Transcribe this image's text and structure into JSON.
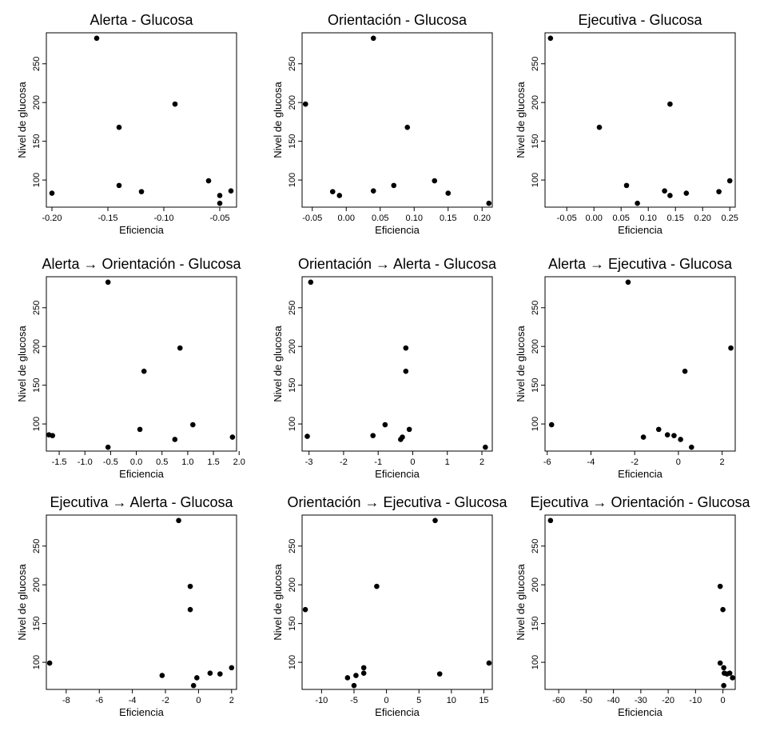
{
  "chart_data": [
    {
      "type": "scatter",
      "title": "Alerta - Glucosa",
      "xlabel": "Eficiencia",
      "ylabel": "Nivel de glucosa",
      "xlim": [
        -0.205,
        -0.035
      ],
      "ylim": [
        65,
        290
      ],
      "xticks": [
        -0.2,
        -0.15,
        -0.1,
        -0.05
      ],
      "xtick_labels": [
        "-0.20",
        "-0.15",
        "-0.10",
        "-0.05"
      ],
      "yticks": [
        100,
        150,
        200,
        250
      ],
      "ytick_labels": [
        "100",
        "150",
        "200",
        "250"
      ],
      "points": [
        {
          "x": -0.2,
          "y": 83
        },
        {
          "x": -0.16,
          "y": 283
        },
        {
          "x": -0.14,
          "y": 168
        },
        {
          "x": -0.14,
          "y": 93
        },
        {
          "x": -0.12,
          "y": 85
        },
        {
          "x": -0.09,
          "y": 198
        },
        {
          "x": -0.06,
          "y": 99
        },
        {
          "x": -0.05,
          "y": 80
        },
        {
          "x": -0.05,
          "y": 70
        },
        {
          "x": -0.04,
          "y": 86
        }
      ]
    },
    {
      "type": "scatter",
      "title": "Orientación - Glucosa",
      "xlabel": "Eficiencia",
      "ylabel": "Nivel de glucosa",
      "xlim": [
        -0.065,
        0.215
      ],
      "ylim": [
        65,
        290
      ],
      "xticks": [
        -0.05,
        0,
        0.05,
        0.1,
        0.15,
        0.2
      ],
      "xtick_labels": [
        "-0.05",
        "0.00",
        "0.05",
        "0.10",
        "0.15",
        "0.20"
      ],
      "yticks": [
        100,
        150,
        200,
        250
      ],
      "ytick_labels": [
        "100",
        "150",
        "200",
        "250"
      ],
      "points": [
        {
          "x": -0.06,
          "y": 198
        },
        {
          "x": -0.02,
          "y": 85
        },
        {
          "x": -0.01,
          "y": 80
        },
        {
          "x": 0.04,
          "y": 283
        },
        {
          "x": 0.04,
          "y": 86
        },
        {
          "x": 0.07,
          "y": 93
        },
        {
          "x": 0.09,
          "y": 168
        },
        {
          "x": 0.13,
          "y": 99
        },
        {
          "x": 0.15,
          "y": 83
        },
        {
          "x": 0.21,
          "y": 70
        }
      ]
    },
    {
      "type": "scatter",
      "title": "Ejecutiva - Glucosa",
      "xlabel": "Eficiencia",
      "ylabel": "Nivel de glucosa",
      "xlim": [
        -0.09,
        0.26
      ],
      "ylim": [
        65,
        290
      ],
      "xticks": [
        -0.05,
        0,
        0.05,
        0.1,
        0.15,
        0.2,
        0.25
      ],
      "xtick_labels": [
        "-0.05",
        "0.00",
        "0.05",
        "0.10",
        "0.15",
        "0.20",
        "0.25"
      ],
      "yticks": [
        100,
        150,
        200,
        250
      ],
      "ytick_labels": [
        "100",
        "150",
        "200",
        "250"
      ],
      "points": [
        {
          "x": -0.08,
          "y": 283
        },
        {
          "x": 0.01,
          "y": 168
        },
        {
          "x": 0.06,
          "y": 93
        },
        {
          "x": 0.08,
          "y": 70
        },
        {
          "x": 0.13,
          "y": 86
        },
        {
          "x": 0.14,
          "y": 198
        },
        {
          "x": 0.14,
          "y": 80
        },
        {
          "x": 0.17,
          "y": 83
        },
        {
          "x": 0.23,
          "y": 85
        },
        {
          "x": 0.25,
          "y": 99
        }
      ]
    },
    {
      "type": "scatter",
      "title": "Alerta → Orientación - Glucosa",
      "xlabel": "Eficiencia",
      "ylabel": "Nivel de glucosa",
      "xlim": [
        -1.75,
        1.95
      ],
      "ylim": [
        65,
        290
      ],
      "xticks": [
        -1.5,
        -1.0,
        -0.5,
        0,
        0.5,
        1.0,
        1.5,
        2.0
      ],
      "xtick_labels": [
        "-1.5",
        "-1.0",
        "-0.5",
        "0.0",
        "0.5",
        "1.0",
        "1.5",
        "2.0"
      ],
      "yticks": [
        100,
        150,
        200,
        250
      ],
      "ytick_labels": [
        "100",
        "150",
        "200",
        "250"
      ],
      "points": [
        {
          "x": -1.7,
          "y": 86
        },
        {
          "x": -1.63,
          "y": 85
        },
        {
          "x": -0.55,
          "y": 283
        },
        {
          "x": -0.55,
          "y": 70
        },
        {
          "x": 0.07,
          "y": 93
        },
        {
          "x": 0.15,
          "y": 168
        },
        {
          "x": 0.75,
          "y": 80
        },
        {
          "x": 0.85,
          "y": 198
        },
        {
          "x": 1.1,
          "y": 99
        },
        {
          "x": 1.87,
          "y": 83
        }
      ]
    },
    {
      "type": "scatter",
      "title": "Orientación → Alerta - Glucosa",
      "xlabel": "Eficiencia",
      "ylabel": "Nivel de glucosa",
      "xlim": [
        -3.2,
        2.3
      ],
      "ylim": [
        65,
        290
      ],
      "xticks": [
        -3,
        -2,
        -1,
        0,
        1,
        2
      ],
      "xtick_labels": [
        "-3",
        "-2",
        "-1",
        "0",
        "1",
        "2"
      ],
      "yticks": [
        100,
        150,
        200,
        250
      ],
      "ytick_labels": [
        "100",
        "150",
        "200",
        "250"
      ],
      "points": [
        {
          "x": -3.05,
          "y": 84
        },
        {
          "x": -2.95,
          "y": 283
        },
        {
          "x": -1.15,
          "y": 85
        },
        {
          "x": -0.8,
          "y": 99
        },
        {
          "x": -0.35,
          "y": 80
        },
        {
          "x": -0.3,
          "y": 83
        },
        {
          "x": -0.2,
          "y": 198
        },
        {
          "x": -0.2,
          "y": 168
        },
        {
          "x": -0.1,
          "y": 93
        },
        {
          "x": 2.1,
          "y": 70
        }
      ]
    },
    {
      "type": "scatter",
      "title": "Alerta → Ejecutiva - Glucosa",
      "xlabel": "Eficiencia",
      "ylabel": "Nivel de glucosa",
      "xlim": [
        -6.1,
        2.6
      ],
      "ylim": [
        65,
        290
      ],
      "xticks": [
        -6,
        -4,
        -2,
        0,
        2
      ],
      "xtick_labels": [
        "-6",
        "-4",
        "-2",
        "0",
        "2"
      ],
      "yticks": [
        100,
        150,
        200,
        250
      ],
      "ytick_labels": [
        "100",
        "150",
        "200",
        "250"
      ],
      "points": [
        {
          "x": -5.8,
          "y": 99
        },
        {
          "x": -2.3,
          "y": 283
        },
        {
          "x": -1.6,
          "y": 83
        },
        {
          "x": -0.9,
          "y": 93
        },
        {
          "x": -0.5,
          "y": 86
        },
        {
          "x": -0.2,
          "y": 85
        },
        {
          "x": 0.1,
          "y": 80
        },
        {
          "x": 0.3,
          "y": 168
        },
        {
          "x": 0.6,
          "y": 70
        },
        {
          "x": 2.4,
          "y": 198
        }
      ]
    },
    {
      "type": "scatter",
      "title": "Ejecutiva → Alerta - Glucosa",
      "xlabel": "Eficiencia",
      "ylabel": "Nivel de glucosa",
      "xlim": [
        -9.2,
        2.3
      ],
      "ylim": [
        65,
        290
      ],
      "xticks": [
        -8,
        -6,
        -4,
        -2,
        0,
        2
      ],
      "xtick_labels": [
        "-8",
        "-6",
        "-4",
        "-2",
        "0",
        "2"
      ],
      "yticks": [
        100,
        150,
        200,
        250
      ],
      "ytick_labels": [
        "100",
        "150",
        "200",
        "250"
      ],
      "points": [
        {
          "x": -9.0,
          "y": 99
        },
        {
          "x": -2.2,
          "y": 83
        },
        {
          "x": -1.2,
          "y": 283
        },
        {
          "x": -0.5,
          "y": 198
        },
        {
          "x": -0.5,
          "y": 168
        },
        {
          "x": -0.3,
          "y": 70
        },
        {
          "x": -0.1,
          "y": 80
        },
        {
          "x": 0.7,
          "y": 86
        },
        {
          "x": 1.3,
          "y": 85
        },
        {
          "x": 2.0,
          "y": 93
        }
      ]
    },
    {
      "type": "scatter",
      "title": "Orientación → Ejecutiva - Glucosa",
      "xlabel": "Eficiencia",
      "ylabel": "Nivel de glucosa",
      "xlim": [
        -13,
        16.3
      ],
      "ylim": [
        65,
        290
      ],
      "xticks": [
        -10,
        -5,
        0,
        5,
        10,
        15
      ],
      "xtick_labels": [
        "-10",
        "-5",
        "0",
        "5",
        "10",
        "15"
      ],
      "yticks": [
        100,
        150,
        200,
        250
      ],
      "ytick_labels": [
        "100",
        "150",
        "200",
        "250"
      ],
      "points": [
        {
          "x": -12.5,
          "y": 168
        },
        {
          "x": -6.0,
          "y": 80
        },
        {
          "x": -5.0,
          "y": 70
        },
        {
          "x": -4.7,
          "y": 83
        },
        {
          "x": -3.5,
          "y": 93
        },
        {
          "x": -3.5,
          "y": 86
        },
        {
          "x": -1.5,
          "y": 198
        },
        {
          "x": 7.5,
          "y": 283
        },
        {
          "x": 8.2,
          "y": 85
        },
        {
          "x": 15.8,
          "y": 99
        }
      ]
    },
    {
      "type": "scatter",
      "title": "Ejecutiva → Orientación - Glucosa",
      "xlabel": "Eficiencia",
      "ylabel": "Nivel de glucosa",
      "xlim": [
        -65,
        4.5
      ],
      "ylim": [
        65,
        290
      ],
      "xticks": [
        -60,
        -50,
        -40,
        -30,
        -20,
        -10,
        0
      ],
      "xtick_labels": [
        "-60",
        "-50",
        "-40",
        "-30",
        "-20",
        "-10",
        "0"
      ],
      "yticks": [
        100,
        150,
        200,
        250
      ],
      "ytick_labels": [
        "100",
        "150",
        "200",
        "250"
      ],
      "points": [
        {
          "x": -63,
          "y": 283
        },
        {
          "x": -1.0,
          "y": 198
        },
        {
          "x": -1.0,
          "y": 99
        },
        {
          "x": 0.0,
          "y": 168
        },
        {
          "x": 0.3,
          "y": 93
        },
        {
          "x": 0.3,
          "y": 70
        },
        {
          "x": 0.5,
          "y": 86
        },
        {
          "x": 1.5,
          "y": 85
        },
        {
          "x": 2.5,
          "y": 86
        },
        {
          "x": 3.5,
          "y": 80
        }
      ]
    }
  ]
}
